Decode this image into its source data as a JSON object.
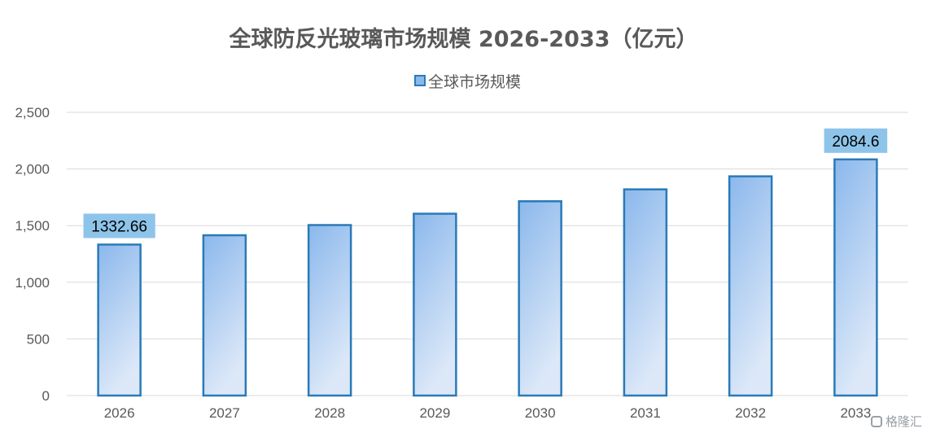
{
  "chart_data": {
    "type": "bar",
    "title": "全球防反光玻璃市场规模 2026-2033（亿元）",
    "categories": [
      "2026",
      "2027",
      "2028",
      "2029",
      "2030",
      "2031",
      "2032",
      "2033"
    ],
    "series": [
      {
        "name": "全球市场规模",
        "values": [
          1332.66,
          1415,
          1505,
          1605,
          1715,
          1820,
          1935,
          2084.6
        ],
        "data_labels": [
          "1332.66",
          null,
          null,
          null,
          null,
          null,
          null,
          "2084.6"
        ]
      }
    ],
    "yticks": [
      "0",
      "500",
      "1,000",
      "1,500",
      "2,000",
      "2,500"
    ],
    "ylim": [
      0,
      2500
    ],
    "grid": true,
    "legend_position": "top-center",
    "colors": {
      "bar_fill_top": "#8bb8ec",
      "bar_fill_bottom": "#dce8f8",
      "bar_border": "#2a7ab8",
      "label_box": "#8ec4ea",
      "grid": "#d9d9d9"
    }
  },
  "watermark": {
    "text": "格隆汇"
  }
}
